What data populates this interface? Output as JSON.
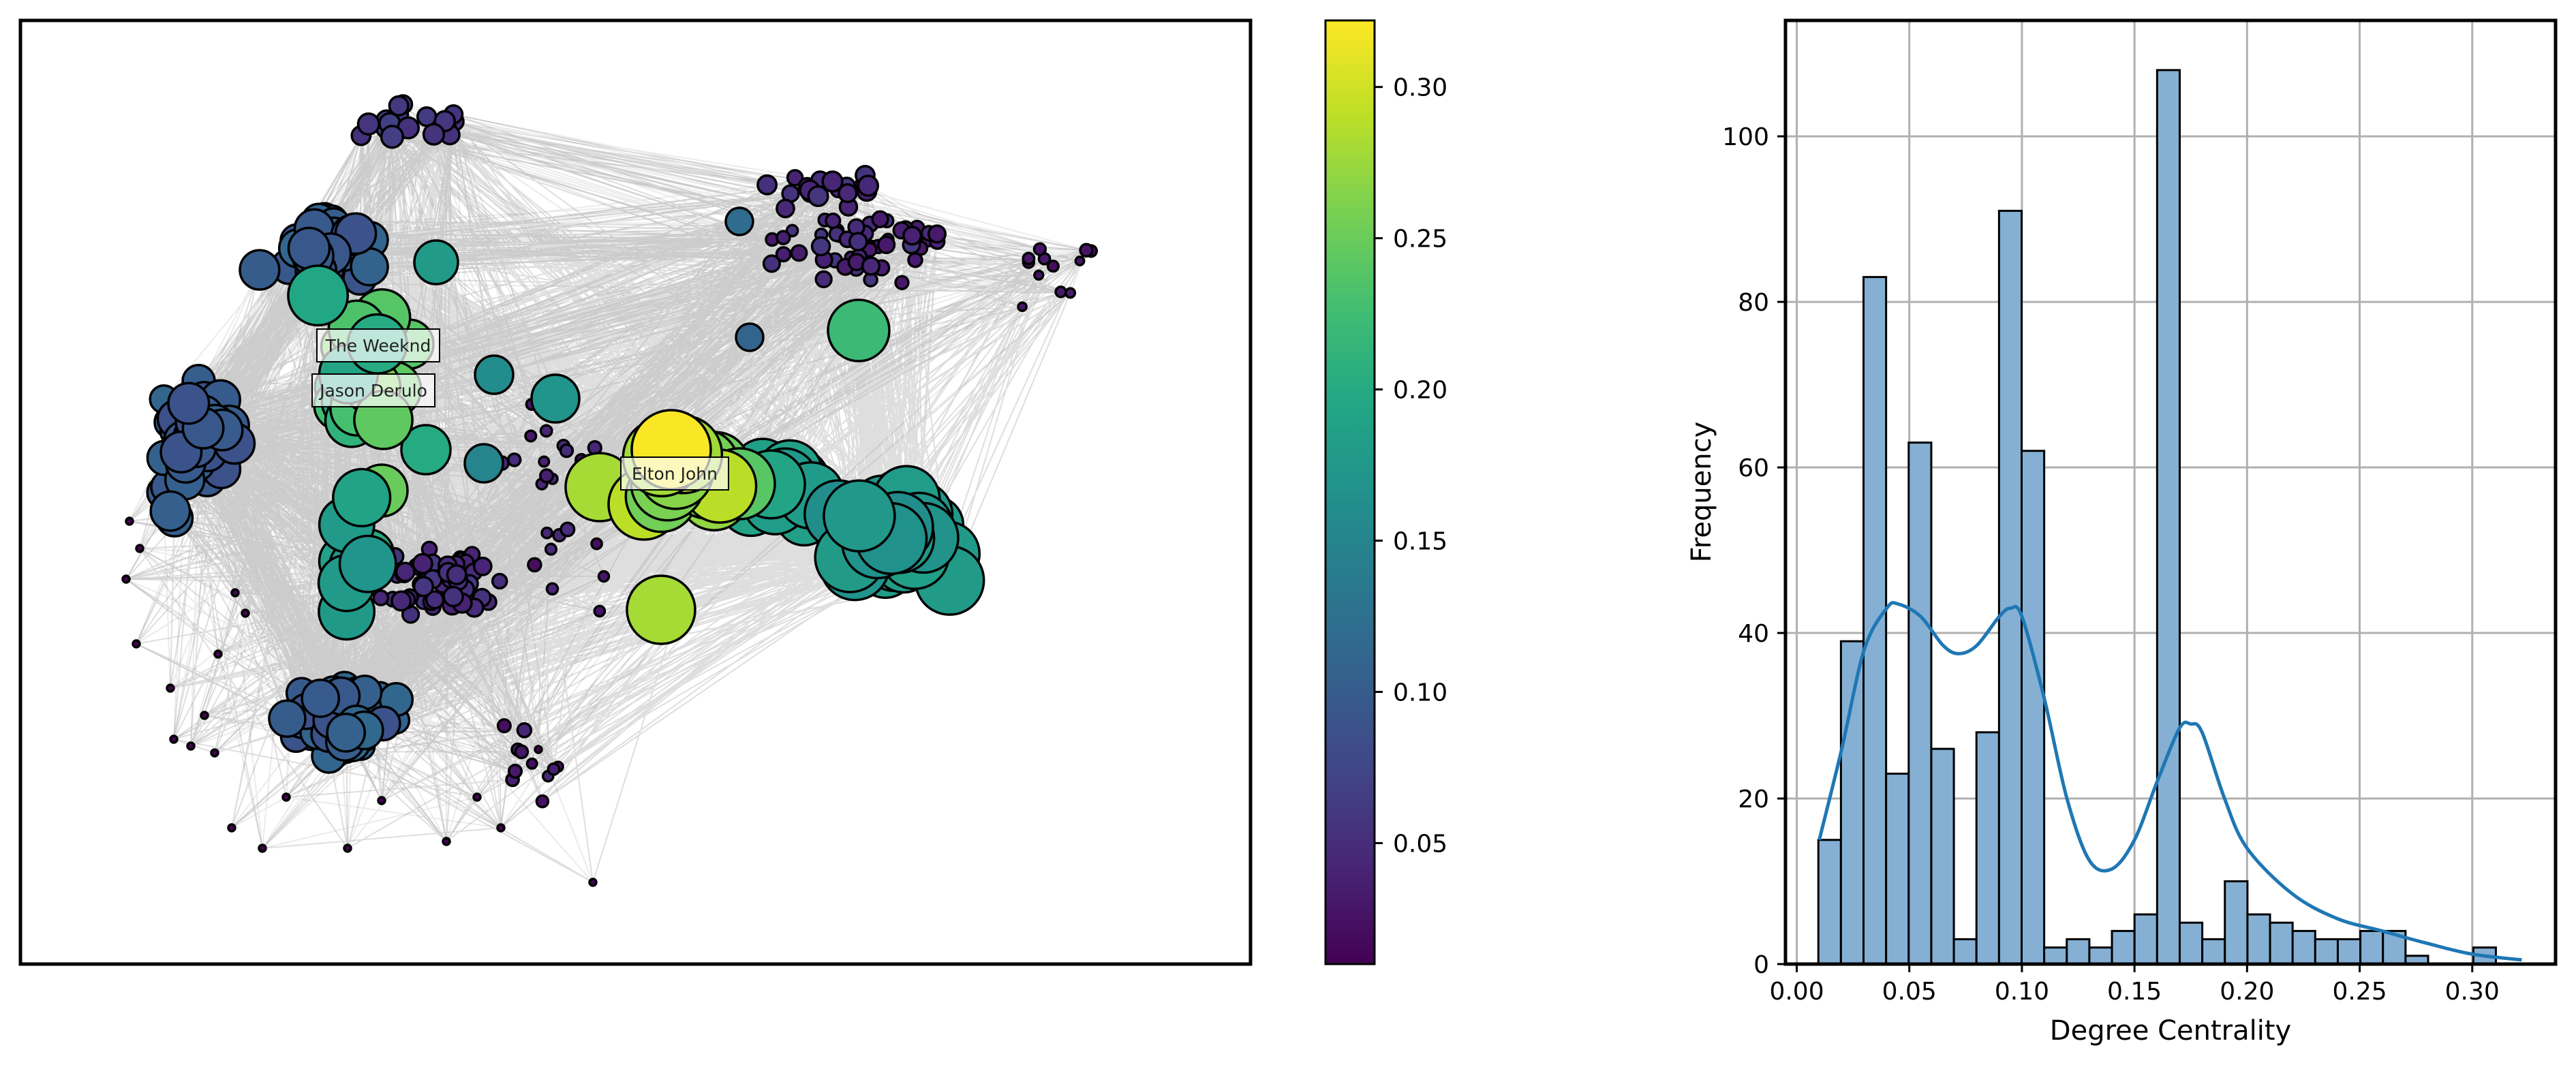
{
  "network": {
    "labels": [
      "The Weeknd",
      "Jason Derulo",
      "Elton John"
    ]
  },
  "colorbar": {
    "range": [
      0.01,
      0.322
    ],
    "ticks": [
      0.05,
      0.1,
      0.15,
      0.2,
      0.25,
      0.3
    ],
    "tick_labels": [
      "0.05",
      "0.10",
      "0.15",
      "0.20",
      "0.25",
      "0.30"
    ],
    "colormap": "viridis"
  },
  "chart_data": [
    {
      "type": "scatter",
      "subtype": "network-graph",
      "title": "",
      "node_color_encodes": "degree centrality",
      "labelled_nodes": [
        {
          "name": "The Weeknd",
          "degree_centrality": 0.27
        },
        {
          "name": "Jason Derulo",
          "degree_centrality": 0.28
        },
        {
          "name": "Elton John",
          "degree_centrality": 0.32
        }
      ],
      "edges_color": "#000000",
      "grid": false
    },
    {
      "type": "bar",
      "subtype": "histogram-with-kde",
      "title": "",
      "xlabel": "Degree Centrality",
      "ylabel": "Frequency",
      "xlim": [
        -0.005,
        0.337
      ],
      "ylim": [
        0,
        114
      ],
      "xticks": [
        0.0,
        0.05,
        0.1,
        0.15,
        0.2,
        0.25,
        0.3
      ],
      "xtick_labels": [
        "0.00",
        "0.05",
        "0.10",
        "0.15",
        "0.20",
        "0.25",
        "0.30"
      ],
      "yticks": [
        0,
        20,
        40,
        60,
        80,
        100
      ],
      "ytick_labels": [
        "0",
        "20",
        "40",
        "60",
        "80",
        "100"
      ],
      "bin_start": 0.0096,
      "bin_width": 0.01003,
      "values": [
        15,
        39,
        83,
        23,
        63,
        26,
        3,
        28,
        91,
        62,
        2,
        3,
        2,
        4,
        6,
        108,
        5,
        3,
        10,
        6,
        5,
        4,
        3,
        3,
        4,
        4,
        1,
        0,
        0,
        2
      ],
      "kde": {
        "x": [
          0.01,
          0.02,
          0.03,
          0.04,
          0.045,
          0.055,
          0.065,
          0.072,
          0.08,
          0.09,
          0.095,
          0.1,
          0.11,
          0.12,
          0.13,
          0.14,
          0.15,
          0.16,
          0.17,
          0.175,
          0.18,
          0.19,
          0.2,
          0.22,
          0.24,
          0.26,
          0.28,
          0.3,
          0.322
        ],
        "y": [
          15,
          26,
          38,
          43,
          43.5,
          42,
          38.5,
          37.5,
          38.5,
          42,
          43,
          42,
          32,
          20,
          12.5,
          11.5,
          15,
          22,
          28.5,
          29,
          28,
          20,
          14,
          8.5,
          5.5,
          4,
          2.5,
          1.2,
          0.5
        ]
      },
      "bar_color": "#85b0d4",
      "kde_color": "#1f77b4",
      "grid": true
    }
  ]
}
